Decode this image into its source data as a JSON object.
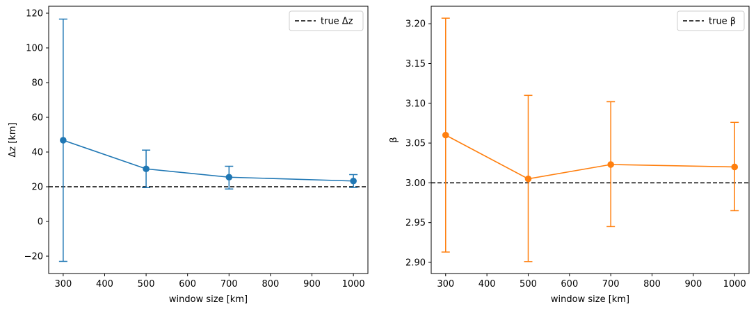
{
  "chart_data": [
    {
      "type": "line",
      "error_bars": true,
      "x": [
        300,
        500,
        700,
        1000
      ],
      "series": [
        {
          "values": [
            46.8,
            30.3,
            25.5,
            23.3
          ],
          "err_low": [
            -23.0,
            19.5,
            18.7,
            19.6
          ],
          "err_high": [
            116.6,
            41.1,
            31.8,
            27.0
          ],
          "color": "#1f77b4"
        }
      ],
      "reference_line": {
        "y": 20,
        "label": "true Δz",
        "style": "dashed",
        "color": "#000000"
      },
      "xlabel": "window size [km]",
      "ylabel": "Δz [km]",
      "xlim": [
        265,
        1035
      ],
      "ylim": [
        -30,
        124
      ],
      "xticks": [
        300,
        400,
        500,
        600,
        700,
        800,
        900,
        1000
      ],
      "yticks": [
        -20,
        0,
        20,
        40,
        60,
        80,
        100,
        120
      ],
      "ytick_labels": [
        "−20",
        "0",
        "20",
        "40",
        "60",
        "80",
        "100",
        "120"
      ],
      "legend": "top-right",
      "grid": false
    },
    {
      "type": "line",
      "error_bars": true,
      "x": [
        300,
        500,
        700,
        1000
      ],
      "series": [
        {
          "values": [
            3.06,
            3.005,
            3.023,
            3.02
          ],
          "err_low": [
            2.913,
            2.901,
            2.945,
            2.965
          ],
          "err_high": [
            3.207,
            3.11,
            3.102,
            3.076
          ],
          "color": "#ff7f0e"
        }
      ],
      "reference_line": {
        "y": 3.0,
        "label": "true β",
        "style": "dashed",
        "color": "#000000"
      },
      "xlabel": "window size [km]",
      "ylabel": "β",
      "xlim": [
        265,
        1035
      ],
      "ylim": [
        2.886,
        3.222
      ],
      "xticks": [
        300,
        400,
        500,
        600,
        700,
        800,
        900,
        1000
      ],
      "yticks": [
        2.9,
        2.95,
        3.0,
        3.05,
        3.1,
        3.15,
        3.2
      ],
      "ytick_labels": [
        "2.90",
        "2.95",
        "3.00",
        "3.05",
        "3.10",
        "3.15",
        "3.20"
      ],
      "legend": "top-right",
      "grid": false
    }
  ]
}
